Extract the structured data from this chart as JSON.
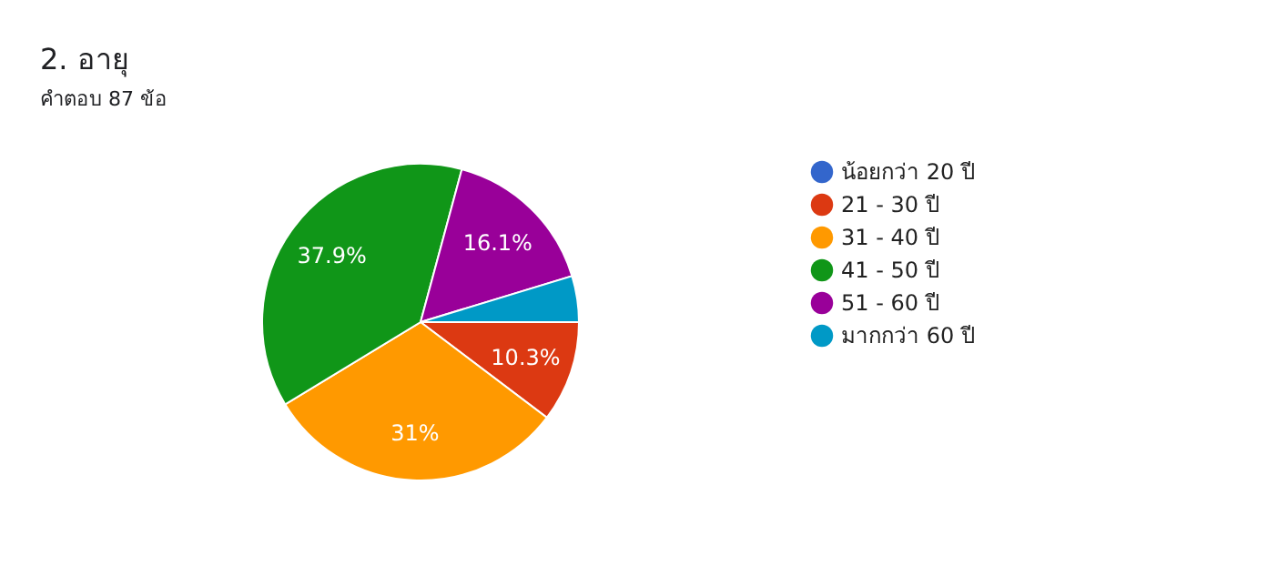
{
  "chart_data": {
    "type": "pie",
    "title": "2. อายุ",
    "subtitle": "คำตอบ 87 ข้อ",
    "categories": [
      "น้อยกว่า 20 ปี",
      "21 - 30 ปี",
      "31 - 40 ปี",
      "41 - 50 ปี",
      "51 - 60 ปี",
      "มากกว่า 60 ปี"
    ],
    "values": [
      0,
      10.3,
      31,
      37.9,
      16.1,
      4.7
    ],
    "colors": [
      "#3366cc",
      "#dc3912",
      "#ff9900",
      "#109618",
      "#990099",
      "#0099c6"
    ],
    "value_labels": [
      null,
      "10.3%",
      "31%",
      "37.9%",
      "16.1%",
      null
    ],
    "legend": "right"
  }
}
